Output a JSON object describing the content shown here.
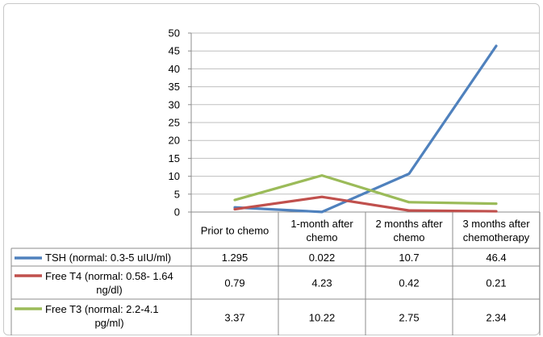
{
  "chart_data": {
    "type": "line",
    "categories": [
      "Prior to chemo",
      "1-month after chemo",
      "2 months after chemo",
      "3 months after chemotherapy"
    ],
    "category_lines": [
      [
        "Prior to chemo"
      ],
      [
        "1-month after",
        "chemo"
      ],
      [
        "2 months after",
        "chemo"
      ],
      [
        "3 months after",
        "chemotherapy"
      ]
    ],
    "ylim": [
      0,
      50
    ],
    "yticks": [
      0,
      5,
      10,
      15,
      20,
      25,
      30,
      35,
      40,
      45,
      50
    ],
    "grid": true,
    "data_table": true,
    "series": [
      {
        "name": "TSH (normal: 0.3-5 uIU/ml)",
        "name_lines": [
          "TSH (normal: 0.3-5 uIU/ml)"
        ],
        "values": [
          1.295,
          0.022,
          10.7,
          46.4
        ],
        "value_labels": [
          "1.295",
          "0.022",
          "10.7",
          "46.4"
        ],
        "color": "#4f81bd"
      },
      {
        "name": "Free T4 (normal: 0.58- 1.64 ng/dl)",
        "name_lines": [
          "Free T4 (normal: 0.58- 1.64",
          "ng/dl)"
        ],
        "values": [
          0.79,
          4.23,
          0.42,
          0.21
        ],
        "value_labels": [
          "0.79",
          "4.23",
          "0.42",
          "0.21"
        ],
        "color": "#c0504d"
      },
      {
        "name": "Free T3 (normal: 2.2-4.1 pg/ml)",
        "name_lines": [
          "Free T3 (normal: 2.2-4.1",
          "pg/ml)"
        ],
        "values": [
          3.37,
          10.22,
          2.75,
          2.34
        ],
        "value_labels": [
          "3.37",
          "10.22",
          "2.75",
          "2.34"
        ],
        "color": "#9bbb59"
      }
    ]
  }
}
